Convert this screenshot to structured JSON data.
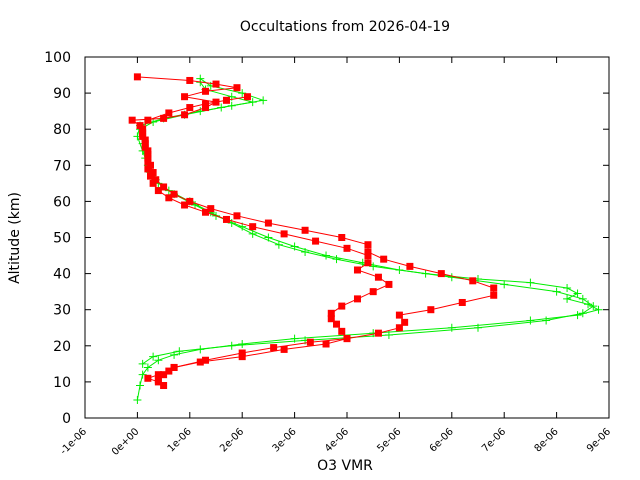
{
  "chart_data": {
    "type": "line",
    "title": "Occultations from 2026-04-19",
    "xlabel": "O3 VMR",
    "ylabel": "Altitude (km)",
    "xlim": [
      -1e-06,
      9e-06
    ],
    "ylim": [
      0,
      100
    ],
    "grid": false,
    "legend": "none",
    "x_tick_labels": [
      "-1e-06",
      "0e+00",
      "1e-06",
      "2e-06",
      "3e-06",
      "4e-06",
      "5e-06",
      "6e-06",
      "7e-06",
      "8e-06",
      "9e-06"
    ],
    "x_tick_values": [
      -1e-06,
      0,
      1e-06,
      2e-06,
      3e-06,
      4e-06,
      5e-06,
      6e-06,
      7e-06,
      8e-06,
      9e-06
    ],
    "y_ticks": [
      0,
      10,
      20,
      30,
      40,
      50,
      60,
      70,
      80,
      90,
      100
    ],
    "series": [
      {
        "color": "#00ee00",
        "marker": "plus",
        "points": [
          [
            0.0,
            5
          ],
          [
            5e-08,
            9
          ],
          [
            1e-07,
            12
          ],
          [
            2e-07,
            14
          ],
          [
            4e-07,
            16
          ],
          [
            7e-07,
            17.5
          ],
          [
            1.2e-06,
            19
          ],
          [
            2e-06,
            20.5
          ],
          [
            3e-06,
            22
          ],
          [
            4.5e-06,
            23.5
          ],
          [
            6e-06,
            25
          ],
          [
            7.5e-06,
            27
          ],
          [
            8.4e-06,
            28.5
          ],
          [
            8.8e-06,
            30
          ],
          [
            8.6e-06,
            31.5
          ],
          [
            8.2e-06,
            33
          ],
          [
            8.4e-06,
            34.5
          ],
          [
            8.2e-06,
            36
          ],
          [
            7.5e-06,
            37.5
          ],
          [
            6.5e-06,
            38.5
          ],
          [
            5.5e-06,
            40
          ],
          [
            4.5e-06,
            42
          ],
          [
            3.8e-06,
            44
          ],
          [
            3.2e-06,
            46
          ],
          [
            2.7e-06,
            48
          ],
          [
            2.2e-06,
            51
          ],
          [
            1.8e-06,
            54
          ],
          [
            1.4e-06,
            57
          ],
          [
            1e-06,
            60
          ],
          [
            6e-07,
            63
          ],
          [
            3.5e-07,
            66
          ],
          [
            2e-07,
            70
          ],
          [
            1e-07,
            74
          ],
          [
            0.0,
            78
          ],
          [
            5e-08,
            81
          ],
          [
            5e-07,
            83
          ],
          [
            1.2e-06,
            85
          ],
          [
            1.8e-06,
            86.5
          ],
          [
            2.4e-06,
            88
          ],
          [
            2e-06,
            90
          ],
          [
            1.4e-06,
            92
          ],
          [
            1.2e-06,
            94
          ]
        ]
      },
      {
        "color": "#00ee00",
        "marker": "plus",
        "points": [
          [
            1e-07,
            15
          ],
          [
            3e-07,
            17
          ],
          [
            8e-07,
            18.5
          ],
          [
            1.8e-06,
            20
          ],
          [
            3.2e-06,
            21.5
          ],
          [
            4.8e-06,
            23
          ],
          [
            6.5e-06,
            25
          ],
          [
            7.8e-06,
            27
          ],
          [
            8.5e-06,
            29
          ],
          [
            8.7e-06,
            31
          ],
          [
            8.5e-06,
            33
          ],
          [
            8e-06,
            35
          ],
          [
            7e-06,
            37
          ],
          [
            6e-06,
            39
          ],
          [
            5e-06,
            41
          ],
          [
            4.3e-06,
            43
          ],
          [
            3.6e-06,
            45
          ],
          [
            3e-06,
            47.5
          ],
          [
            2.5e-06,
            50
          ],
          [
            2e-06,
            53
          ],
          [
            1.5e-06,
            56
          ],
          [
            1.1e-06,
            59
          ],
          [
            7e-07,
            62
          ],
          [
            4e-07,
            65
          ],
          [
            2.5e-07,
            68
          ],
          [
            1.5e-07,
            72
          ],
          [
            1e-07,
            76
          ],
          [
            5e-08,
            80
          ],
          [
            3e-07,
            82
          ],
          [
            9e-07,
            84
          ],
          [
            1.6e-06,
            86
          ],
          [
            2.2e-06,
            87.5
          ],
          [
            1.8e-06,
            89
          ],
          [
            1.3e-06,
            91
          ],
          [
            1.2e-06,
            93
          ]
        ]
      },
      {
        "color": "#ff0000",
        "marker": "square",
        "points": [
          [
            0.0,
            94.5
          ],
          [
            1e-06,
            93.5
          ],
          [
            1.5e-06,
            92.5
          ],
          [
            1.9e-06,
            91.5
          ],
          [
            1.3e-06,
            90.5
          ],
          [
            9e-07,
            89
          ],
          [
            1.5e-06,
            87.5
          ],
          [
            1.3e-06,
            86
          ],
          [
            9e-07,
            84
          ],
          [
            5e-07,
            83
          ],
          [
            -1e-07,
            82.5
          ],
          [
            5e-08,
            81
          ],
          [
            1e-07,
            79
          ],
          [
            1.5e-07,
            77
          ],
          [
            1.5e-07,
            75
          ],
          [
            2e-07,
            73
          ],
          [
            2e-07,
            71
          ],
          [
            2e-07,
            69
          ],
          [
            2.5e-07,
            67
          ],
          [
            3e-07,
            65
          ],
          [
            4e-07,
            63
          ],
          [
            6e-07,
            61
          ],
          [
            9e-07,
            59
          ],
          [
            1.3e-06,
            57
          ],
          [
            1.7e-06,
            55
          ],
          [
            2.2e-06,
            53
          ],
          [
            2.8e-06,
            51
          ],
          [
            3.4e-06,
            49
          ],
          [
            4e-06,
            47
          ],
          [
            4.4e-06,
            45
          ],
          [
            4.4e-06,
            43
          ],
          [
            4.2e-06,
            41
          ],
          [
            4.6e-06,
            39
          ],
          [
            4.8e-06,
            37
          ],
          [
            4.5e-06,
            35
          ],
          [
            4.2e-06,
            33
          ],
          [
            3.9e-06,
            31
          ],
          [
            3.7e-06,
            29
          ],
          [
            3.7e-06,
            27.5
          ],
          [
            3.8e-06,
            26
          ],
          [
            3.9e-06,
            24
          ],
          [
            4e-06,
            22
          ],
          [
            3.6e-06,
            20.5
          ],
          [
            2.8e-06,
            19
          ],
          [
            2e-06,
            17
          ],
          [
            1.2e-06,
            15.5
          ],
          [
            7e-07,
            14
          ],
          [
            6e-07,
            13
          ],
          [
            4e-07,
            12
          ],
          [
            2e-07,
            11
          ],
          [
            4e-07,
            10
          ],
          [
            5e-07,
            9
          ]
        ]
      },
      {
        "color": "#ff0000",
        "marker": "square",
        "points": [
          [
            2.1e-06,
            89
          ],
          [
            1.7e-06,
            88
          ],
          [
            1.3e-06,
            87
          ],
          [
            1e-06,
            86
          ],
          [
            6e-07,
            84.5
          ],
          [
            2e-07,
            82.5
          ],
          [
            1e-07,
            80
          ],
          [
            1e-07,
            78
          ],
          [
            1.5e-07,
            76
          ],
          [
            2e-07,
            74
          ],
          [
            2e-07,
            72
          ],
          [
            2.5e-07,
            70
          ],
          [
            3e-07,
            68
          ],
          [
            3.5e-07,
            66
          ],
          [
            5e-07,
            64
          ],
          [
            7e-07,
            62
          ],
          [
            1e-06,
            60
          ],
          [
            1.4e-06,
            58
          ],
          [
            1.9e-06,
            56
          ],
          [
            2.5e-06,
            54
          ],
          [
            3.2e-06,
            52
          ],
          [
            3.9e-06,
            50
          ],
          [
            4.4e-06,
            48
          ],
          [
            4.4e-06,
            46
          ],
          [
            4.7e-06,
            44
          ],
          [
            5.2e-06,
            42
          ],
          [
            5.8e-06,
            40
          ],
          [
            6.4e-06,
            38
          ],
          [
            6.8e-06,
            36
          ],
          [
            6.8e-06,
            34
          ],
          [
            6.2e-06,
            32
          ],
          [
            5.6e-06,
            30
          ],
          [
            5e-06,
            28.5
          ],
          [
            5.1e-06,
            26.5
          ],
          [
            5e-06,
            25
          ],
          [
            4.6e-06,
            23.5
          ],
          [
            4e-06,
            22
          ],
          [
            3.3e-06,
            21
          ],
          [
            2.6e-06,
            19.5
          ],
          [
            2e-06,
            18
          ],
          [
            1.3e-06,
            16
          ],
          [
            7e-07,
            14
          ],
          [
            5e-07,
            12
          ],
          [
            4e-07,
            10.5
          ]
        ]
      }
    ]
  }
}
